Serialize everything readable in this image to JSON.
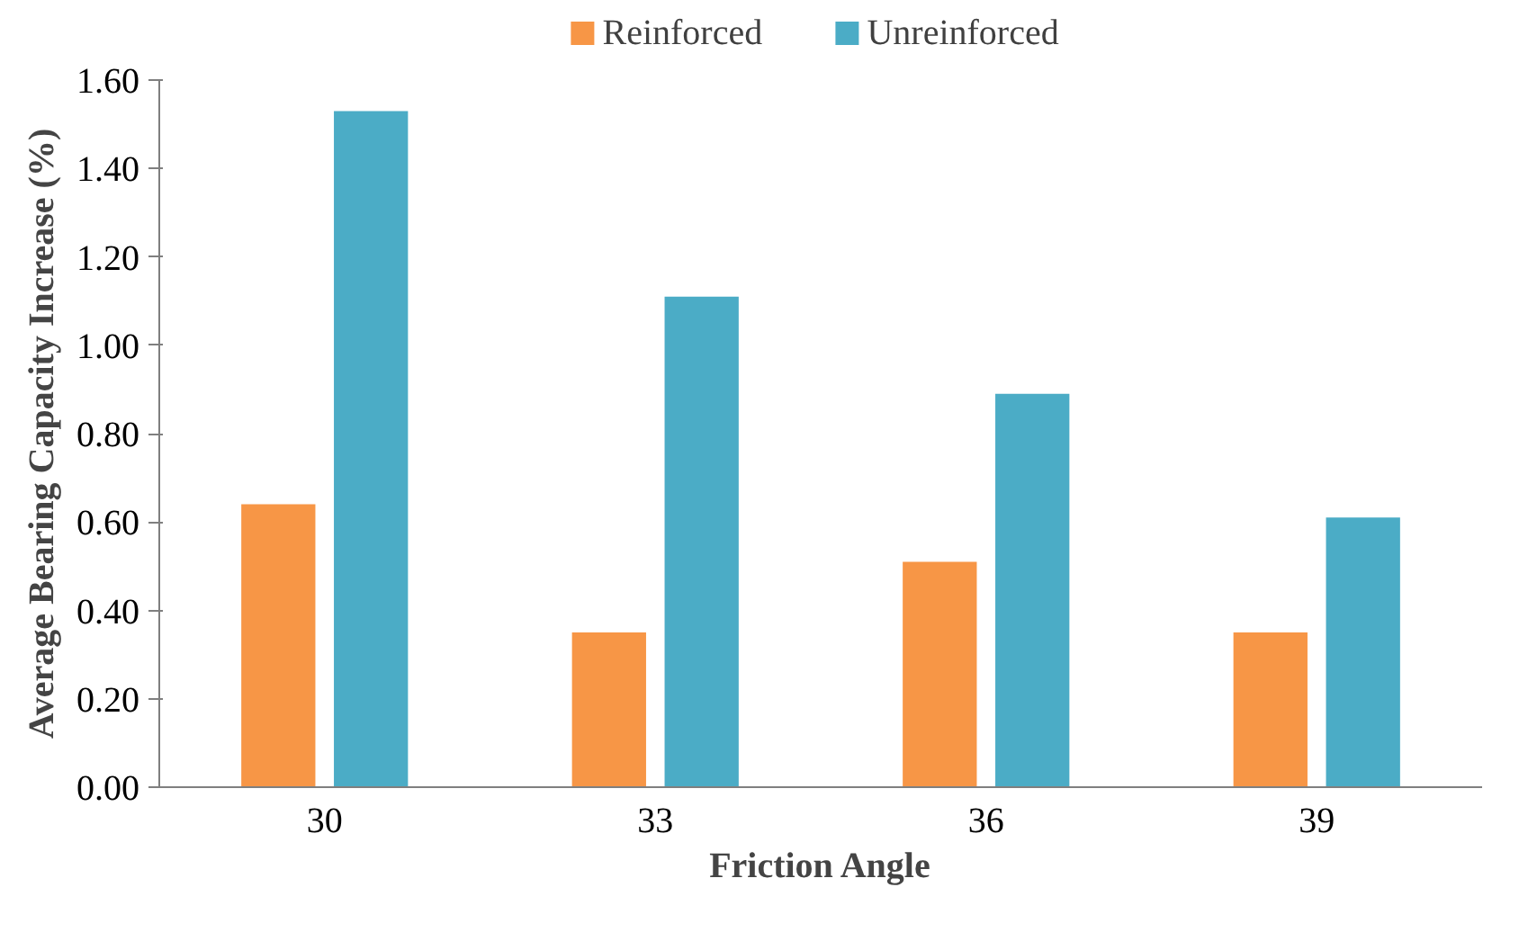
{
  "chart_data": {
    "type": "bar",
    "xlabel": "Friction Angle",
    "ylabel": "Average Bearing Capacity Increase (%)",
    "categories": [
      "30",
      "33",
      "36",
      "39"
    ],
    "series": [
      {
        "name": "Reinforced",
        "color": "#f79646",
        "values": [
          0.64,
          0.35,
          0.51,
          0.35
        ]
      },
      {
        "name": "Unreinforced",
        "color": "#4bacc6",
        "values": [
          1.53,
          1.11,
          0.89,
          0.61
        ]
      }
    ],
    "ylim": [
      0,
      1.6
    ],
    "yticks": [
      {
        "value": 0,
        "label": "0.00"
      },
      {
        "value": 0.2,
        "label": "0.20"
      },
      {
        "value": 0.4,
        "label": "0.40"
      },
      {
        "value": 0.6,
        "label": "0.60"
      },
      {
        "value": 0.8,
        "label": "0.80"
      },
      {
        "value": 1.0,
        "label": "1.00"
      },
      {
        "value": 1.2,
        "label": "1.20"
      },
      {
        "value": 1.4,
        "label": "1.40"
      },
      {
        "value": 1.6,
        "label": "1.60"
      }
    ],
    "grid": false,
    "legend": "top"
  }
}
